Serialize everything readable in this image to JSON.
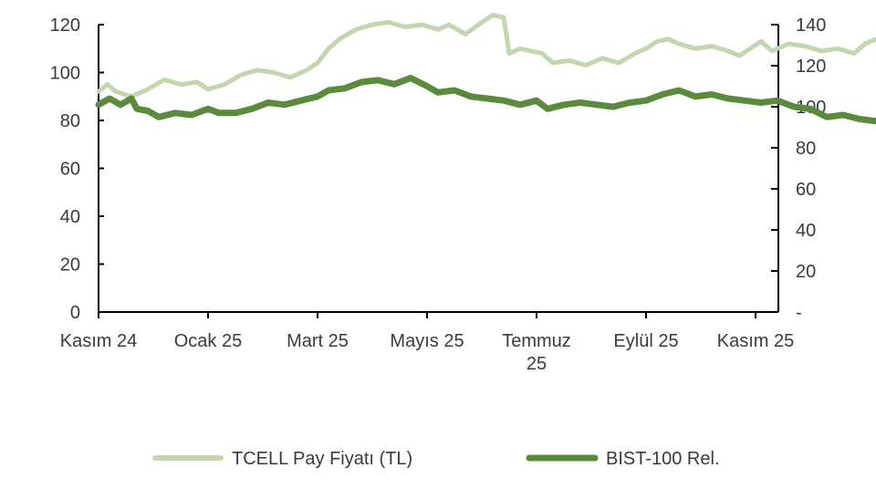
{
  "chart_data": {
    "type": "line",
    "title": "",
    "xlabel": "",
    "ylabel": "",
    "y_left": {
      "ylim": [
        0,
        120
      ],
      "ticks": [
        "0",
        "20",
        "40",
        "60",
        "80",
        "100",
        "120"
      ]
    },
    "y_right": {
      "ylim": [
        0,
        140
      ],
      "ticks": [
        "-",
        "20",
        "40",
        "60",
        "80",
        "100",
        "120",
        "140"
      ]
    },
    "x_ticks": [
      "Kasım 24",
      "Ocak 25",
      "Mart 25",
      "Mayıs 25",
      "Temmuz 25",
      "Eylül 25",
      "Kasım 25"
    ],
    "grid": false,
    "legend_position": "bottom",
    "series": [
      {
        "name": "TCELL Pay Fiyatı (TL)",
        "axis": "left",
        "color": "#c4d6b0",
        "points": [
          [
            0,
            92
          ],
          [
            0.08,
            95
          ],
          [
            0.16,
            92
          ],
          [
            0.3,
            90
          ],
          [
            0.45,
            93
          ],
          [
            0.6,
            97
          ],
          [
            0.75,
            95
          ],
          [
            0.9,
            96
          ],
          [
            1.0,
            93
          ],
          [
            1.15,
            95
          ],
          [
            1.3,
            99
          ],
          [
            1.45,
            101
          ],
          [
            1.6,
            100
          ],
          [
            1.75,
            98
          ],
          [
            1.9,
            101
          ],
          [
            2.0,
            104
          ],
          [
            2.1,
            110
          ],
          [
            2.2,
            114
          ],
          [
            2.35,
            118
          ],
          [
            2.5,
            120
          ],
          [
            2.65,
            121
          ],
          [
            2.8,
            119
          ],
          [
            2.95,
            120
          ],
          [
            3.1,
            118
          ],
          [
            3.2,
            120
          ],
          [
            3.35,
            116
          ],
          [
            3.5,
            121
          ],
          [
            3.6,
            124
          ],
          [
            3.7,
            123
          ],
          [
            3.75,
            108
          ],
          [
            3.85,
            110
          ],
          [
            3.95,
            109
          ],
          [
            4.05,
            108
          ],
          [
            4.15,
            104
          ],
          [
            4.3,
            105
          ],
          [
            4.45,
            103
          ],
          [
            4.6,
            106
          ],
          [
            4.75,
            104
          ],
          [
            4.9,
            108
          ],
          [
            5.0,
            110
          ],
          [
            5.1,
            113
          ],
          [
            5.2,
            114
          ],
          [
            5.3,
            112
          ],
          [
            5.45,
            110
          ],
          [
            5.6,
            111
          ],
          [
            5.75,
            109
          ],
          [
            5.85,
            107
          ],
          [
            5.95,
            110
          ],
          [
            6.05,
            113
          ],
          [
            6.15,
            109
          ],
          [
            6.3,
            112
          ],
          [
            6.45,
            111
          ],
          [
            6.6,
            109
          ],
          [
            6.75,
            110
          ],
          [
            6.9,
            108
          ],
          [
            7.0,
            112
          ],
          [
            7.1,
            114
          ],
          [
            7.2,
            111
          ],
          [
            7.3,
            109
          ],
          [
            7.45,
            111
          ],
          [
            7.6,
            113
          ],
          [
            7.75,
            116
          ],
          [
            7.85,
            114
          ],
          [
            7.95,
            111
          ],
          [
            8.05,
            107
          ],
          [
            8.15,
            105
          ],
          [
            8.3,
            108
          ],
          [
            8.45,
            111
          ],
          [
            8.6,
            115
          ],
          [
            8.75,
            116
          ],
          [
            8.9,
            114
          ],
          [
            9.0,
            118
          ],
          [
            9.15,
            116
          ],
          [
            9.3,
            115
          ],
          [
            9.4,
            112
          ],
          [
            9.5,
            110
          ],
          [
            9.6,
            114
          ],
          [
            9.75,
            118
          ],
          [
            9.85,
            116
          ],
          [
            9.95,
            113
          ],
          [
            10.0,
            117
          ]
        ]
      },
      {
        "name": "BIST-100 Rel.",
        "axis": "right",
        "color": "#5a8a3c",
        "points": [
          [
            0,
            101
          ],
          [
            0.1,
            104
          ],
          [
            0.2,
            101
          ],
          [
            0.3,
            104
          ],
          [
            0.35,
            99
          ],
          [
            0.45,
            98
          ],
          [
            0.55,
            95
          ],
          [
            0.7,
            97
          ],
          [
            0.85,
            96
          ],
          [
            1.0,
            99
          ],
          [
            1.1,
            97
          ],
          [
            1.25,
            97
          ],
          [
            1.4,
            99
          ],
          [
            1.55,
            102
          ],
          [
            1.7,
            101
          ],
          [
            1.85,
            103
          ],
          [
            2.0,
            105
          ],
          [
            2.1,
            108
          ],
          [
            2.25,
            109
          ],
          [
            2.4,
            112
          ],
          [
            2.55,
            113
          ],
          [
            2.7,
            111
          ],
          [
            2.85,
            114
          ],
          [
            3.0,
            110
          ],
          [
            3.1,
            107
          ],
          [
            3.25,
            108
          ],
          [
            3.4,
            105
          ],
          [
            3.55,
            104
          ],
          [
            3.7,
            103
          ],
          [
            3.85,
            101
          ],
          [
            4.0,
            103
          ],
          [
            4.1,
            99
          ],
          [
            4.25,
            101
          ],
          [
            4.4,
            102
          ],
          [
            4.55,
            101
          ],
          [
            4.7,
            100
          ],
          [
            4.85,
            102
          ],
          [
            5.0,
            103
          ],
          [
            5.15,
            106
          ],
          [
            5.3,
            108
          ],
          [
            5.45,
            105
          ],
          [
            5.6,
            106
          ],
          [
            5.75,
            104
          ],
          [
            5.9,
            103
          ],
          [
            6.05,
            102
          ],
          [
            6.2,
            103
          ],
          [
            6.35,
            100
          ],
          [
            6.5,
            99
          ],
          [
            6.65,
            95
          ],
          [
            6.8,
            96
          ],
          [
            6.95,
            94
          ],
          [
            7.1,
            93
          ],
          [
            7.25,
            92
          ],
          [
            7.4,
            91
          ],
          [
            7.55,
            94
          ],
          [
            7.7,
            92
          ],
          [
            7.85,
            89
          ],
          [
            7.95,
            91
          ],
          [
            8.1,
            90
          ],
          [
            8.25,
            92
          ],
          [
            8.4,
            93
          ],
          [
            8.55,
            95
          ],
          [
            8.7,
            97
          ],
          [
            8.85,
            100
          ],
          [
            9.0,
            98
          ],
          [
            9.15,
            99
          ],
          [
            9.3,
            97
          ],
          [
            9.45,
            98
          ],
          [
            9.6,
            96
          ],
          [
            9.75,
            98
          ],
          [
            9.85,
            94
          ],
          [
            9.95,
            97
          ],
          [
            10.0,
            98
          ]
        ]
      }
    ]
  }
}
